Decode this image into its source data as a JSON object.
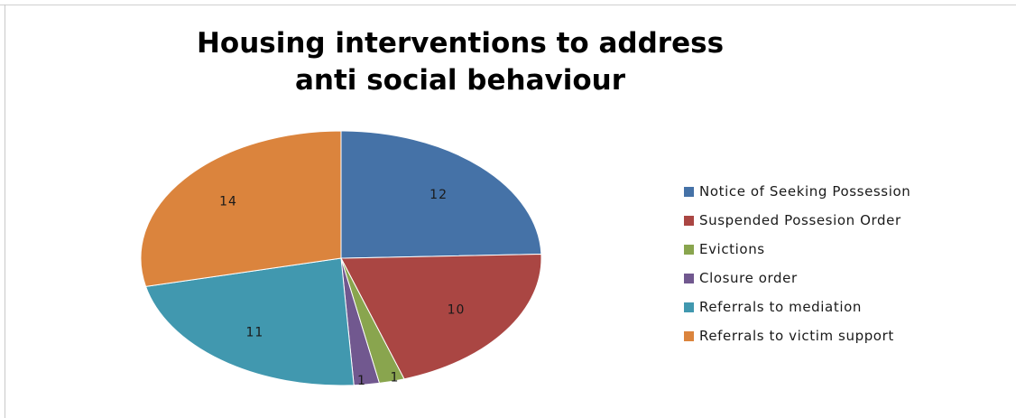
{
  "chart_data": {
    "type": "pie",
    "title_lines": [
      "Housing interventions to address",
      "anti social behaviour"
    ],
    "categories": [
      "Notice of Seeking Possession",
      "Suspended Possesion Order",
      "Evictions",
      "Closure order",
      "Referrals to mediation",
      "Referrals to victim support"
    ],
    "values": [
      12,
      10,
      1,
      1,
      11,
      14
    ],
    "data_labels": [
      "12",
      "10",
      "1",
      "1",
      "11",
      "14"
    ],
    "colors": [
      "#4572a7",
      "#aa4643",
      "#89a54e",
      "#71588f",
      "#4198af",
      "#db843d"
    ],
    "legend_position": "right",
    "start_angle_deg": 0,
    "direction": "clockwise"
  }
}
